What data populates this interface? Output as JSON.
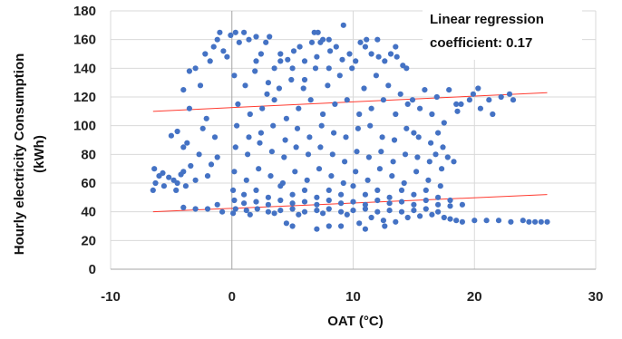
{
  "chart_data": {
    "type": "scatter",
    "title": "",
    "xlabel": "OAT (°C)",
    "ylabel_lines": [
      "Hourly electricity Consumption",
      "(kWh)"
    ],
    "xlim": [
      -10,
      30
    ],
    "ylim": [
      0,
      180
    ],
    "xticks": [
      -10,
      0,
      10,
      20,
      30
    ],
    "yticks": [
      0,
      20,
      40,
      60,
      80,
      100,
      120,
      140,
      160,
      180
    ],
    "grid": true,
    "legend": "none",
    "marker_color": "#4472C4",
    "trend_color": "#FF3B30",
    "annotation_lines": [
      "Linear regression",
      "coefficient: 0.17"
    ],
    "trendlines": [
      {
        "x": [
          -6.5,
          26
        ],
        "y": [
          40,
          52
        ]
      },
      {
        "x": [
          -6.5,
          26
        ],
        "y": [
          110,
          123
        ]
      }
    ],
    "series": [
      {
        "points": [
          [
            -6.5,
            55
          ],
          [
            -6.3,
            60
          ],
          [
            -6,
            65
          ],
          [
            -5.6,
            58
          ],
          [
            -5.2,
            64
          ],
          [
            -4.8,
            62
          ],
          [
            -4.5,
            60
          ],
          [
            -4.2,
            66
          ],
          [
            -4,
            68
          ],
          [
            -3.8,
            58
          ],
          [
            -6.4,
            70
          ],
          [
            -5.7,
            67
          ],
          [
            -4.6,
            55
          ],
          [
            -5,
            93
          ],
          [
            -4.5,
            96
          ],
          [
            -4,
            85
          ],
          [
            -3.7,
            88
          ],
          [
            -3.5,
            112
          ],
          [
            -3.4,
            72
          ],
          [
            -3,
            62
          ],
          [
            -2.7,
            80
          ],
          [
            -2.4,
            98
          ],
          [
            -2.1,
            105
          ],
          [
            -2,
            65
          ],
          [
            -1.7,
            73
          ],
          [
            -1.4,
            92
          ],
          [
            -1.2,
            78
          ],
          [
            -4,
            125
          ],
          [
            -3.5,
            138
          ],
          [
            -3,
            140
          ],
          [
            -2.6,
            128
          ],
          [
            -2.2,
            150
          ],
          [
            -1.8,
            145
          ],
          [
            -1.5,
            155
          ],
          [
            -1.2,
            160
          ],
          [
            -1,
            165
          ],
          [
            -0.7,
            152
          ],
          [
            -0.4,
            148
          ],
          [
            -0.1,
            163
          ],
          [
            -4,
            43
          ],
          [
            -3,
            42
          ],
          [
            -2,
            42
          ],
          [
            -1.2,
            45
          ],
          [
            -0.8,
            40
          ],
          [
            0.3,
            165
          ],
          [
            0.6,
            158
          ],
          [
            1,
            165
          ],
          [
            1.4,
            160
          ],
          [
            2,
            162
          ],
          [
            2.4,
            150
          ],
          [
            2.8,
            158
          ],
          [
            3.1,
            162
          ],
          [
            3.5,
            140
          ],
          [
            4,
            150
          ],
          [
            4.6,
            146
          ],
          [
            5.1,
            152
          ],
          [
            5.6,
            155
          ],
          [
            6,
            145
          ],
          [
            6.6,
            158
          ],
          [
            7.1,
            165
          ],
          [
            7.5,
            160
          ],
          [
            8.1,
            152
          ],
          [
            8.6,
            155
          ],
          [
            9.1,
            146
          ],
          [
            9.7,
            150
          ],
          [
            10.2,
            145
          ],
          [
            10.6,
            158
          ],
          [
            11.1,
            160
          ],
          [
            11.5,
            150
          ],
          [
            12.1,
            148
          ],
          [
            12.6,
            145
          ],
          [
            13.1,
            150
          ],
          [
            13.6,
            148
          ],
          [
            14.1,
            142
          ],
          [
            9.2,
            170
          ],
          [
            0.2,
            135
          ],
          [
            1.1,
            128
          ],
          [
            1.9,
            138
          ],
          [
            2.9,
            122
          ],
          [
            3.9,
            126
          ],
          [
            4.9,
            132
          ],
          [
            5.9,
            126
          ],
          [
            6.9,
            140
          ],
          [
            7.9,
            128
          ],
          [
            8.9,
            135
          ],
          [
            9.9,
            140
          ],
          [
            10.9,
            126
          ],
          [
            11.9,
            135
          ],
          [
            12.9,
            128
          ],
          [
            13.9,
            122
          ],
          [
            14.9,
            118
          ],
          [
            15.9,
            125
          ],
          [
            16.9,
            120
          ],
          [
            17.9,
            125
          ],
          [
            18.9,
            115
          ],
          [
            19.9,
            122
          ],
          [
            20.3,
            126
          ],
          [
            21.2,
            118
          ],
          [
            22.2,
            120
          ],
          [
            22.9,
            122
          ],
          [
            23.2,
            118
          ],
          [
            21.5,
            108
          ],
          [
            20.5,
            112
          ],
          [
            19.6,
            118
          ],
          [
            18.6,
            110
          ],
          [
            0.5,
            115
          ],
          [
            1.5,
            108
          ],
          [
            2.5,
            112
          ],
          [
            3.5,
            118
          ],
          [
            4.5,
            105
          ],
          [
            5.5,
            112
          ],
          [
            6.5,
            118
          ],
          [
            7.5,
            108
          ],
          [
            8.5,
            115
          ],
          [
            9.5,
            118
          ],
          [
            10.5,
            108
          ],
          [
            11.5,
            112
          ],
          [
            12.5,
            118
          ],
          [
            13.5,
            108
          ],
          [
            14.5,
            115
          ],
          [
            15.5,
            112
          ],
          [
            16.5,
            108
          ],
          [
            17.5,
            102
          ],
          [
            18.5,
            115
          ],
          [
            15,
            95
          ],
          [
            17,
            95
          ],
          [
            0.4,
            100
          ],
          [
            1.4,
            92
          ],
          [
            2.4,
            95
          ],
          [
            3.4,
            100
          ],
          [
            4.4,
            90
          ],
          [
            5.4,
            98
          ],
          [
            6.4,
            92
          ],
          [
            7.4,
            100
          ],
          [
            8.4,
            95
          ],
          [
            9.4,
            92
          ],
          [
            10.4,
            98
          ],
          [
            11.4,
            100
          ],
          [
            12.4,
            92
          ],
          [
            13.4,
            90
          ],
          [
            14.4,
            98
          ],
          [
            15.4,
            92
          ],
          [
            16.4,
            88
          ],
          [
            17.4,
            85
          ],
          [
            0.3,
            85
          ],
          [
            1.3,
            80
          ],
          [
            2.3,
            88
          ],
          [
            3.3,
            82
          ],
          [
            4.3,
            78
          ],
          [
            5.3,
            85
          ],
          [
            6.3,
            80
          ],
          [
            7.3,
            85
          ],
          [
            8.3,
            80
          ],
          [
            9.3,
            75
          ],
          [
            10.3,
            82
          ],
          [
            11.3,
            78
          ],
          [
            12.3,
            82
          ],
          [
            13.3,
            75
          ],
          [
            14.3,
            80
          ],
          [
            15.3,
            78
          ],
          [
            16.3,
            75
          ],
          [
            17.3,
            70
          ],
          [
            18.3,
            75
          ],
          [
            16.8,
            80
          ],
          [
            17.8,
            78
          ],
          [
            0.2,
            68
          ],
          [
            1.2,
            62
          ],
          [
            2.2,
            70
          ],
          [
            3.2,
            65
          ],
          [
            4.2,
            60
          ],
          [
            5.2,
            68
          ],
          [
            6.2,
            62
          ],
          [
            7.2,
            70
          ],
          [
            8.2,
            65
          ],
          [
            9.2,
            60
          ],
          [
            10.2,
            68
          ],
          [
            11.2,
            62
          ],
          [
            12.2,
            70
          ],
          [
            13.2,
            65
          ],
          [
            14.2,
            60
          ],
          [
            15.2,
            68
          ],
          [
            16.2,
            62
          ],
          [
            17.2,
            58
          ],
          [
            0.1,
            55
          ],
          [
            1,
            52
          ],
          [
            2,
            55
          ],
          [
            3,
            50
          ],
          [
            4,
            58
          ],
          [
            5,
            52
          ],
          [
            6,
            55
          ],
          [
            7,
            50
          ],
          [
            8,
            55
          ],
          [
            9,
            52
          ],
          [
            10,
            58
          ],
          [
            11,
            52
          ],
          [
            12,
            55
          ],
          [
            13,
            50
          ],
          [
            14,
            55
          ],
          [
            15,
            52
          ],
          [
            16,
            55
          ],
          [
            17,
            50
          ],
          [
            18,
            48
          ],
          [
            0.2,
            48
          ],
          [
            1,
            46
          ],
          [
            2,
            47
          ],
          [
            3,
            45
          ],
          [
            4,
            48
          ],
          [
            5,
            46
          ],
          [
            6,
            47
          ],
          [
            7,
            45
          ],
          [
            8,
            48
          ],
          [
            9,
            46
          ],
          [
            10,
            47
          ],
          [
            11,
            45
          ],
          [
            12,
            48
          ],
          [
            13,
            46
          ],
          [
            14,
            47
          ],
          [
            15,
            45
          ],
          [
            16,
            48
          ],
          [
            17,
            45
          ],
          [
            18,
            44
          ],
          [
            19,
            45
          ],
          [
            0.3,
            42
          ],
          [
            1.2,
            41
          ],
          [
            2.1,
            42
          ],
          [
            3,
            40
          ],
          [
            4,
            41
          ],
          [
            5,
            42
          ],
          [
            6,
            40
          ],
          [
            7,
            41
          ],
          [
            8,
            42
          ],
          [
            9,
            40
          ],
          [
            10,
            41
          ],
          [
            11,
            42
          ],
          [
            12,
            40
          ],
          [
            13,
            41
          ],
          [
            14,
            40
          ],
          [
            15,
            41
          ],
          [
            16,
            42
          ],
          [
            17,
            40
          ],
          [
            0.1,
            39
          ],
          [
            1.5,
            38
          ],
          [
            3.5,
            39
          ],
          [
            5.5,
            38
          ],
          [
            7.5,
            39
          ],
          [
            9.5,
            38
          ],
          [
            11.5,
            36
          ],
          [
            12.5,
            34
          ],
          [
            14.5,
            36
          ],
          [
            15.5,
            37
          ],
          [
            16.5,
            38
          ],
          [
            17.5,
            36
          ],
          [
            18,
            35
          ],
          [
            18.5,
            34
          ],
          [
            19,
            33
          ],
          [
            20,
            34
          ],
          [
            21,
            34
          ],
          [
            22,
            34
          ],
          [
            23,
            33
          ],
          [
            24,
            34
          ],
          [
            25,
            33
          ],
          [
            26,
            33
          ],
          [
            10.5,
            32
          ],
          [
            13.5,
            33
          ],
          [
            25.5,
            33
          ],
          [
            24.5,
            33
          ],
          [
            4,
            145
          ],
          [
            5,
            140
          ],
          [
            6,
            132
          ],
          [
            7,
            148
          ],
          [
            8,
            140
          ],
          [
            3,
            130
          ],
          [
            2,
            145
          ],
          [
            6.8,
            165
          ],
          [
            7.3,
            158
          ],
          [
            8,
            160
          ],
          [
            11,
            155
          ],
          [
            12,
            160
          ],
          [
            13.5,
            155
          ],
          [
            14.4,
            140
          ],
          [
            5,
            30
          ],
          [
            7,
            28
          ],
          [
            8,
            30
          ],
          [
            11,
            28
          ],
          [
            12.6,
            30
          ],
          [
            4.5,
            32
          ],
          [
            9,
            30
          ]
        ]
      }
    ]
  }
}
